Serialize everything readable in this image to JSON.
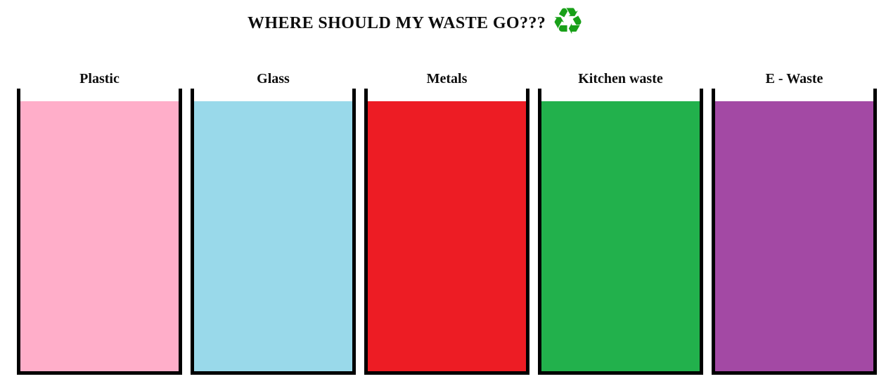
{
  "header": {
    "title": "WHERE SHOULD MY WASTE GO???",
    "recycle_icon": {
      "glyph": "♻",
      "color": "#18a018"
    }
  },
  "bins": [
    {
      "label": "Plastic",
      "fill_color": "#ffaec9"
    },
    {
      "label": "Glass",
      "fill_color": "#99d9ea"
    },
    {
      "label": "Metals",
      "fill_color": "#ed1c24"
    },
    {
      "label": "Kitchen waste",
      "fill_color": "#22b14c"
    },
    {
      "label": "E - Waste",
      "fill_color": "#a349a4"
    }
  ],
  "colors": {
    "background": "#ffffff",
    "bin_border": "#000000",
    "title_text": "#0d0d0d"
  }
}
